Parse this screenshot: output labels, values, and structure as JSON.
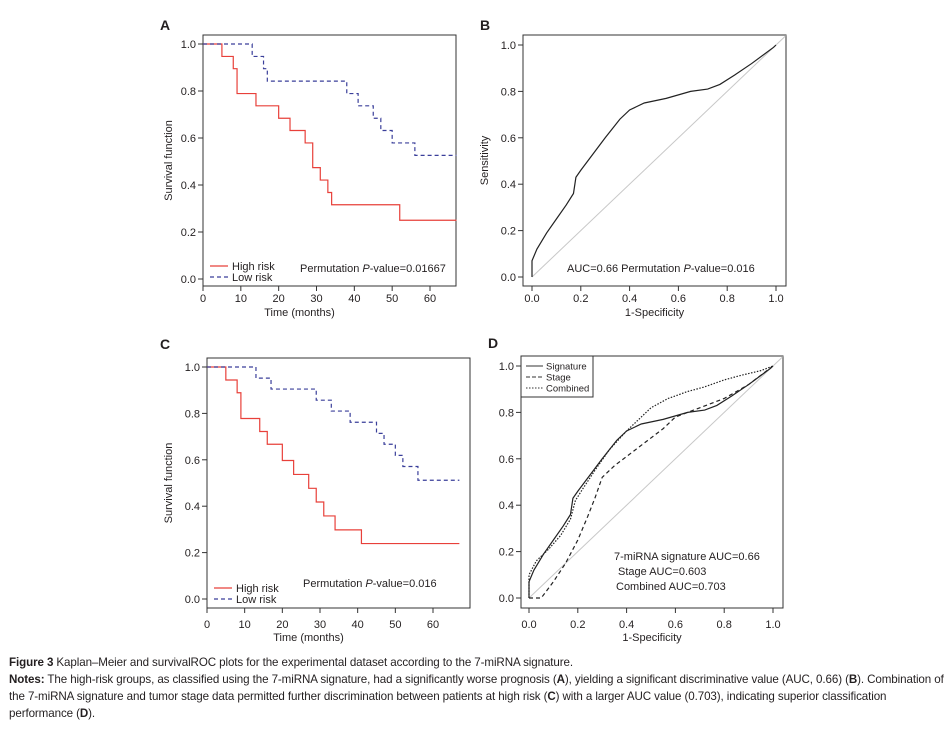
{
  "figure": {
    "caption_title": "Figure 3",
    "caption_title_text": " Kaplan–Meier and survivalROC plots for the experimental dataset according to the 7-miRNA signature.",
    "notes_label": "Notes:",
    "notes_parts": [
      " The high-risk groups, as classified using the 7-miRNA signature, had a significantly worse prognosis (",
      "A",
      "), yielding a significant discriminative value (AUC, 0.66) (",
      "B",
      "). Combination of the 7-miRNA signature and tumor stage data permitted further discrimination between patients at high risk (",
      "C",
      ") with a larger AUC value (0.703), indicating superior classification performance (",
      "D",
      ")."
    ]
  },
  "colors": {
    "high_risk": "#e8403a",
    "low_risk": "#3a3f9a",
    "roc": "#222222",
    "diagonal": "#c8c8c8"
  },
  "chart_data": [
    {
      "panel": "A",
      "type": "line",
      "subtype": "kaplan-meier",
      "xlabel": "Time (months)",
      "ylabel": "Survival function",
      "xlim": [
        0,
        67
      ],
      "ylim": [
        0,
        1
      ],
      "xticks": [
        "0",
        "10",
        "20",
        "30",
        "40",
        "50",
        "60"
      ],
      "yticks": [
        "0.0",
        "0.2",
        "0.4",
        "0.6",
        "0.8",
        "1.0"
      ],
      "annotation": {
        "prefix": "Permutation ",
        "italic": "P",
        "suffix": "-value=0.01667"
      },
      "legend": {
        "position": "bottom-left",
        "entries": [
          "High risk",
          "Low risk"
        ]
      },
      "series": [
        {
          "name": "High risk",
          "style": "solid",
          "x": [
            0,
            5,
            8,
            9,
            14,
            20,
            23,
            27,
            29,
            31,
            33,
            34,
            52,
            67
          ],
          "y": [
            1.0,
            0.947,
            0.895,
            0.789,
            0.737,
            0.684,
            0.632,
            0.579,
            0.474,
            0.421,
            0.368,
            0.316,
            0.25,
            0.25
          ]
        },
        {
          "name": "Low risk",
          "style": "dashed",
          "x": [
            0,
            13,
            16,
            17,
            38,
            41,
            45,
            47,
            50,
            56,
            67
          ],
          "y": [
            1.0,
            0.947,
            0.895,
            0.842,
            0.789,
            0.737,
            0.684,
            0.632,
            0.579,
            0.526,
            0.526
          ]
        }
      ]
    },
    {
      "panel": "B",
      "type": "line",
      "subtype": "roc",
      "xlabel": "1-Specificity",
      "ylabel": "Sensitivity",
      "xlim": [
        0,
        1
      ],
      "ylim": [
        0,
        1
      ],
      "xticks": [
        "0.0",
        "0.2",
        "0.4",
        "0.6",
        "0.8",
        "1.0"
      ],
      "yticks": [
        "0.0",
        "0.2",
        "0.4",
        "0.6",
        "0.8",
        "1.0"
      ],
      "annotation": {
        "prefix": "AUC=0.66  Permutation ",
        "italic": "P",
        "suffix": "-value=0.016"
      },
      "series": [
        {
          "name": "Signature",
          "style": "solid",
          "x": [
            0,
            0,
            0.02,
            0.06,
            0.1,
            0.14,
            0.17,
            0.18,
            0.2,
            0.25,
            0.3,
            0.36,
            0.4,
            0.46,
            0.55,
            0.65,
            0.72,
            0.77,
            0.83,
            0.9,
            0.99,
            1.0
          ],
          "y": [
            0,
            0.07,
            0.12,
            0.19,
            0.25,
            0.31,
            0.36,
            0.43,
            0.46,
            0.53,
            0.6,
            0.68,
            0.72,
            0.75,
            0.77,
            0.8,
            0.81,
            0.83,
            0.87,
            0.92,
            0.99,
            1.0
          ]
        }
      ]
    },
    {
      "panel": "C",
      "type": "line",
      "subtype": "kaplan-meier",
      "xlabel": "Time (months)",
      "ylabel": "Survival function",
      "xlim": [
        0,
        67
      ],
      "ylim": [
        0,
        1
      ],
      "xticks": [
        "0",
        "10",
        "20",
        "30",
        "40",
        "50",
        "60"
      ],
      "yticks": [
        "0.0",
        "0.2",
        "0.4",
        "0.6",
        "0.8",
        "1.0"
      ],
      "annotation": {
        "prefix": "Permutation ",
        "italic": "P",
        "suffix": "-value=0.016"
      },
      "legend": {
        "position": "bottom-left",
        "entries": [
          "High risk",
          "Low risk"
        ]
      },
      "series": [
        {
          "name": "High risk",
          "style": "solid",
          "x": [
            0,
            5,
            8,
            9,
            14,
            16,
            20,
            23,
            27,
            29,
            31,
            34,
            41,
            67
          ],
          "y": [
            1.0,
            0.944,
            0.889,
            0.778,
            0.722,
            0.667,
            0.597,
            0.537,
            0.477,
            0.418,
            0.358,
            0.298,
            0.239,
            0.239
          ]
        },
        {
          "name": "Low risk",
          "style": "dashed",
          "x": [
            0,
            13,
            17,
            29,
            33,
            38,
            45,
            47,
            50,
            52,
            56,
            67
          ],
          "y": [
            1.0,
            0.952,
            0.905,
            0.857,
            0.81,
            0.762,
            0.714,
            0.667,
            0.619,
            0.571,
            0.512,
            0.512
          ]
        }
      ]
    },
    {
      "panel": "D",
      "type": "line",
      "subtype": "roc",
      "xlabel": "1-Specificity",
      "ylabel": "",
      "xlim": [
        0,
        1
      ],
      "ylim": [
        0,
        1
      ],
      "xticks": [
        "0.0",
        "0.2",
        "0.4",
        "0.6",
        "0.8",
        "1.0"
      ],
      "yticks": [
        "0.0",
        "0.2",
        "0.4",
        "0.6",
        "0.8",
        "1.0"
      ],
      "annotation_lines": [
        "7-miRNA signature AUC=0.66",
        "Stage AUC=0.603",
        "Combined AUC=0.703"
      ],
      "legend": {
        "position": "top-left",
        "entries": [
          "Signature",
          "Stage",
          "Combined"
        ]
      },
      "series": [
        {
          "name": "Signature",
          "style": "solid",
          "x": [
            0,
            0,
            0.02,
            0.06,
            0.1,
            0.14,
            0.17,
            0.18,
            0.2,
            0.25,
            0.3,
            0.36,
            0.4,
            0.46,
            0.55,
            0.65,
            0.72,
            0.77,
            0.83,
            0.9,
            0.99,
            1.0
          ],
          "y": [
            0,
            0.07,
            0.12,
            0.19,
            0.25,
            0.31,
            0.36,
            0.43,
            0.46,
            0.53,
            0.6,
            0.68,
            0.72,
            0.75,
            0.77,
            0.8,
            0.81,
            0.83,
            0.87,
            0.92,
            0.99,
            1.0
          ]
        },
        {
          "name": "Stage",
          "style": "dashed",
          "x": [
            0,
            0.05,
            0.1,
            0.15,
            0.2,
            0.24,
            0.27,
            0.3,
            0.35,
            0.4,
            0.45,
            0.5,
            0.55,
            0.6,
            0.7,
            0.8,
            0.9,
            1.0
          ],
          "y": [
            0,
            0,
            0.07,
            0.15,
            0.25,
            0.35,
            0.43,
            0.52,
            0.57,
            0.61,
            0.65,
            0.69,
            0.73,
            0.78,
            0.82,
            0.86,
            0.92,
            1.0
          ]
        },
        {
          "name": "Combined",
          "style": "dotted",
          "x": [
            0,
            0,
            0.03,
            0.08,
            0.13,
            0.17,
            0.19,
            0.22,
            0.27,
            0.33,
            0.4,
            0.46,
            0.5,
            0.57,
            0.65,
            0.72,
            0.8,
            0.87,
            0.95,
            1.0
          ],
          "y": [
            0,
            0.1,
            0.16,
            0.21,
            0.27,
            0.34,
            0.42,
            0.47,
            0.55,
            0.64,
            0.72,
            0.78,
            0.82,
            0.86,
            0.89,
            0.91,
            0.94,
            0.96,
            0.98,
            1.0
          ]
        }
      ]
    }
  ]
}
